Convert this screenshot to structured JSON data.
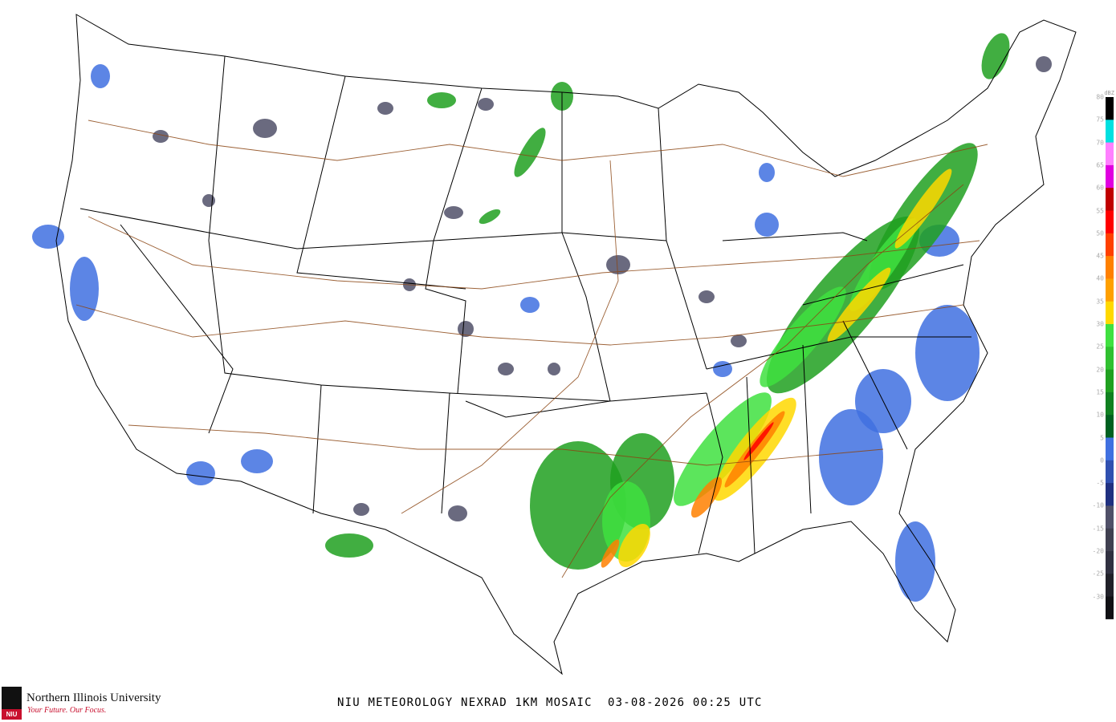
{
  "title": "NIU METEOROLOGY NEXRAD 1KM MOSAIC  03-08-2026 00:25 UTC",
  "logo": {
    "name": "Northern Illinois University",
    "tagline": "Your Future. Our Focus.",
    "mark": "NIU"
  },
  "legend": {
    "unit": "dBZ",
    "labels": [
      "80",
      "75",
      "70",
      "65",
      "60",
      "55",
      "50",
      "45",
      "40",
      "35",
      "30",
      "25",
      "20",
      "15",
      "10",
      "5",
      "0",
      "-5",
      "-10",
      "-15",
      "-20",
      "-25",
      "-30"
    ],
    "colors": {
      "80": "#000000",
      "75": "#00e0e0",
      "70": "#ff80ff",
      "65": "#e000e0",
      "60": "#c00000",
      "55": "#ff0000",
      "50": "#ff4000",
      "45": "#ff8000",
      "40": "#ffa000",
      "35": "#ffd800",
      "30": "#40e040",
      "25": "#30c030",
      "20": "#20a020",
      "15": "#108020",
      "10": "#006020",
      "5": "#4070e0",
      "0": "#3050b0",
      "-5": "#203080",
      "-10": "#505068",
      "-15": "#404050",
      "-20": "#303040",
      "-25": "#202028",
      "-30": "#101014"
    }
  },
  "map_colors": {
    "border": "#000000",
    "highways": "#8b4513"
  }
}
